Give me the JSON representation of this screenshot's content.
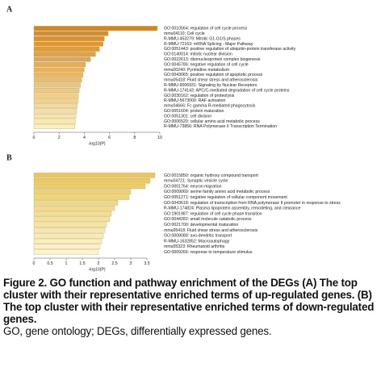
{
  "chart_data": [
    {
      "type": "barh",
      "panel_label": "A",
      "xlabel": "-log10(P)",
      "categories": [
        "GO:0010564: regulation of cell cycle process",
        "mmu04110: Cell cycle",
        "R-MMU-453279: Mitotic G1-G1/S phases",
        "R-MMU-72163: mRNA Splicing - Major Pathway",
        "GO:0051443: positive regulation of ubiquitin-protein transferase activity",
        "GO:0140014: mitotic nuclear division",
        "GO:0022613: ribonucleoprotein complex biogenesis",
        "GO:0045786: negative regulation of cell cycle",
        "mmu00240: Pyrimidine metabolism",
        "GO:0043065: positive regulation of apoptotic process",
        "mmu05418: Fluid shear stress and atherosclerosis",
        "R-MMU-9006931: Signaling by Nuclear Receptors",
        "R-MMU-174143: APC/C-mediated degradation of cell cycle proteins",
        "GO:0030162: regulation of proteolysis",
        "R-MMU-5673000: RAF activation",
        "mmu04666: Fc gamma R-mediated phagocytosis",
        "GO:0051604: protein maturation",
        "GO:0051301: cell division",
        "GO:0006520: cellular amino acid metabolic process",
        "R-MMU-73856: RNA Polymerase II Transcription Termination"
      ],
      "values": [
        9.8,
        5.9,
        5.6,
        5.5,
        5.2,
        4.9,
        4.5,
        4.1,
        4.0,
        3.9,
        3.8,
        3.7,
        3.6,
        3.55,
        3.5,
        3.45,
        3.4,
        3.35,
        3.3,
        3.25
      ],
      "color_range": [
        "#d8861a",
        "#f9efbf"
      ],
      "xlim": [
        0,
        10
      ],
      "xticks": [
        0,
        2,
        4,
        6,
        8,
        10
      ]
    },
    {
      "type": "barh",
      "panel_label": "B",
      "xlabel": "-log10(P)",
      "categories": [
        "GO:0015850: organic hydroxy compound transport",
        "mmu04721: Synaptic vesicle cycle",
        "GO:0001764: neuron migration",
        "GO:0009069: serine family amino acid metabolic process",
        "GO:0051271: negative regulation of cellular component movement",
        "GO:0043618: regulation of transcription from RNA polymerase II promoter in response to stress",
        "R-MMU-174824: Plasma lipoprotein assembly, remodeling, and clearance",
        "GO:1901987: regulation of cell cycle phase transition",
        "GO:0044282: small molecule catabolic process",
        "GO:0021700: developmental maturation",
        "mmu05418: Fluid shear stress and atherosclerosis",
        "GO:0008088: axo-dendritic transport",
        "R-MMU-1632852: Macroautophagy",
        "mmu05323: Rheumatoid arthritis",
        "GO:0009266: response to temperature stimulus"
      ],
      "values": [
        3.75,
        3.6,
        3.45,
        3.0,
        2.95,
        2.6,
        2.5,
        2.4,
        2.35,
        2.25,
        2.2,
        2.15,
        2.1,
        2.05,
        2.0
      ],
      "color_range": [
        "#e9c75a",
        "#fbf4cf"
      ],
      "xlim": [
        0,
        3.9
      ],
      "xticks": [
        0,
        0.5,
        1,
        1.5,
        2,
        2.5,
        3,
        3.5
      ]
    }
  ],
  "caption": {
    "bold": "Figure 2. GO function and pathway enrichment of the DEGs (A) The top cluster with their representative enriched terms of up-regulated genes. (B) The top cluster with their representative enriched terms of down-regulated genes.",
    "plain": "GO, gene ontology; DEGs, differentially expressed genes."
  }
}
